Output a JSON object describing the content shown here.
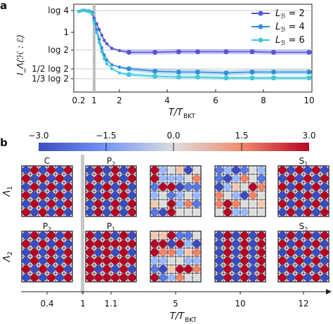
{
  "panel_a": {
    "letter": "a",
    "ylabel": "I_Λ(ℋ : ℰ)",
    "xlabel_main": "T/T",
    "xlabel_sub": "BKT",
    "y_tick_labels": [
      "log 4",
      "1",
      "log 2",
      "1/2 log 2",
      "1/3 log 2"
    ],
    "x_tick_labels": [
      "0.2",
      "2",
      "1",
      "4",
      "6",
      "8",
      "10"
    ],
    "legend": [
      {
        "prefix": "L",
        "sub": "ℬ",
        "eq": " = 2"
      },
      {
        "prefix": "L",
        "sub": "ℬ",
        "eq": " = 4"
      },
      {
        "prefix": "L",
        "sub": "ℬ",
        "eq": " = 6"
      }
    ]
  },
  "panel_b": {
    "letter": "b",
    "colorbar_tick_labels": [
      "−3.0",
      "−1.5",
      "0.0",
      "1.5",
      "3.0"
    ],
    "colorbar_range": [
      -3.0,
      3.0
    ],
    "row_labels": [
      "Λ1",
      "Λ2"
    ],
    "row_label_parts": [
      {
        "main": "Λ",
        "sub": "1"
      },
      {
        "main": "Λ",
        "sub": "2"
      }
    ],
    "column_titles_row1": [
      {
        "main": "C",
        "sub": ""
      },
      {
        "main": "P",
        "sub": "2"
      },
      {
        "main": "",
        "sub": ""
      },
      {
        "main": "",
        "sub": ""
      },
      {
        "main": "S",
        "sub": "1"
      }
    ],
    "column_titles_row2": [
      {
        "main": "P",
        "sub": "2"
      },
      {
        "main": "P",
        "sub": "1"
      },
      {
        "main": "",
        "sub": ""
      },
      {
        "main": "",
        "sub": ""
      },
      {
        "main": "S",
        "sub": "2"
      }
    ],
    "x_tick_labels": [
      "0.4",
      "1",
      "1.1",
      "5",
      "10",
      "12"
    ],
    "xlabel_main": "T/T",
    "xlabel_sub": "BKT"
  },
  "chart_data": [
    {
      "type": "line",
      "title": "",
      "xlabel": "T/T_BKT",
      "ylabel": "I_Λ(ℋ : ℰ)",
      "xlim": [
        0.2,
        10
      ],
      "ylim": [
        0.15,
        1.45
      ],
      "y_reference_lines": [
        {
          "label": "log 4",
          "value": 1.386
        },
        {
          "label": "log 2",
          "value": 0.693
        },
        {
          "label": "1/2 log 2",
          "value": 0.347
        },
        {
          "label": "1/3 log 2",
          "value": 0.231
        }
      ],
      "vertical_reference_line": 1.0,
      "series": [
        {
          "name": "L_B = 2",
          "color": "#5555dd",
          "x": [
            0.2,
            0.3,
            0.4,
            0.5,
            0.6,
            0.7,
            0.8,
            0.9,
            1.0,
            1.1,
            1.2,
            1.3,
            1.4,
            1.5,
            1.7,
            2.0,
            2.4,
            3.5,
            4.5,
            5.3,
            6.5,
            7.6,
            8.5,
            10
          ],
          "y": [
            1.37,
            1.38,
            1.39,
            1.39,
            1.38,
            1.38,
            1.37,
            1.35,
            1.25,
            1.15,
            1.05,
            0.95,
            0.86,
            0.8,
            0.72,
            0.68,
            0.65,
            0.65,
            0.66,
            0.66,
            0.66,
            0.66,
            0.65,
            0.65
          ]
        },
        {
          "name": "L_B = 4",
          "color": "#2f8fd8",
          "x": [
            0.2,
            0.3,
            0.4,
            0.5,
            0.6,
            0.7,
            0.8,
            0.9,
            1.0,
            1.1,
            1.2,
            1.3,
            1.4,
            1.5,
            1.7,
            2.0,
            2.4,
            3.5,
            4.5,
            5.3,
            6.5,
            7.6,
            8.5,
            10
          ],
          "y": [
            1.37,
            1.38,
            1.39,
            1.39,
            1.38,
            1.38,
            1.37,
            1.34,
            1.22,
            1.05,
            0.88,
            0.73,
            0.6,
            0.51,
            0.42,
            0.38,
            0.35,
            0.32,
            0.31,
            0.31,
            0.3,
            0.31,
            0.31,
            0.31
          ]
        },
        {
          "name": "L_B = 6",
          "color": "#3fc9d6",
          "x": [
            0.2,
            0.3,
            0.4,
            0.5,
            0.6,
            0.7,
            0.8,
            0.9,
            1.0,
            1.1,
            1.2,
            1.3,
            1.4,
            1.5,
            1.7,
            2.0,
            2.4,
            3.5,
            4.5,
            5.3,
            6.5,
            7.6,
            8.5,
            10
          ],
          "y": [
            1.37,
            1.38,
            1.39,
            1.39,
            1.38,
            1.37,
            1.36,
            1.32,
            1.18,
            1.0,
            0.82,
            0.66,
            0.53,
            0.44,
            0.35,
            0.3,
            0.28,
            0.26,
            0.25,
            0.25,
            0.24,
            0.24,
            0.24,
            0.24
          ]
        }
      ]
    }
  ]
}
